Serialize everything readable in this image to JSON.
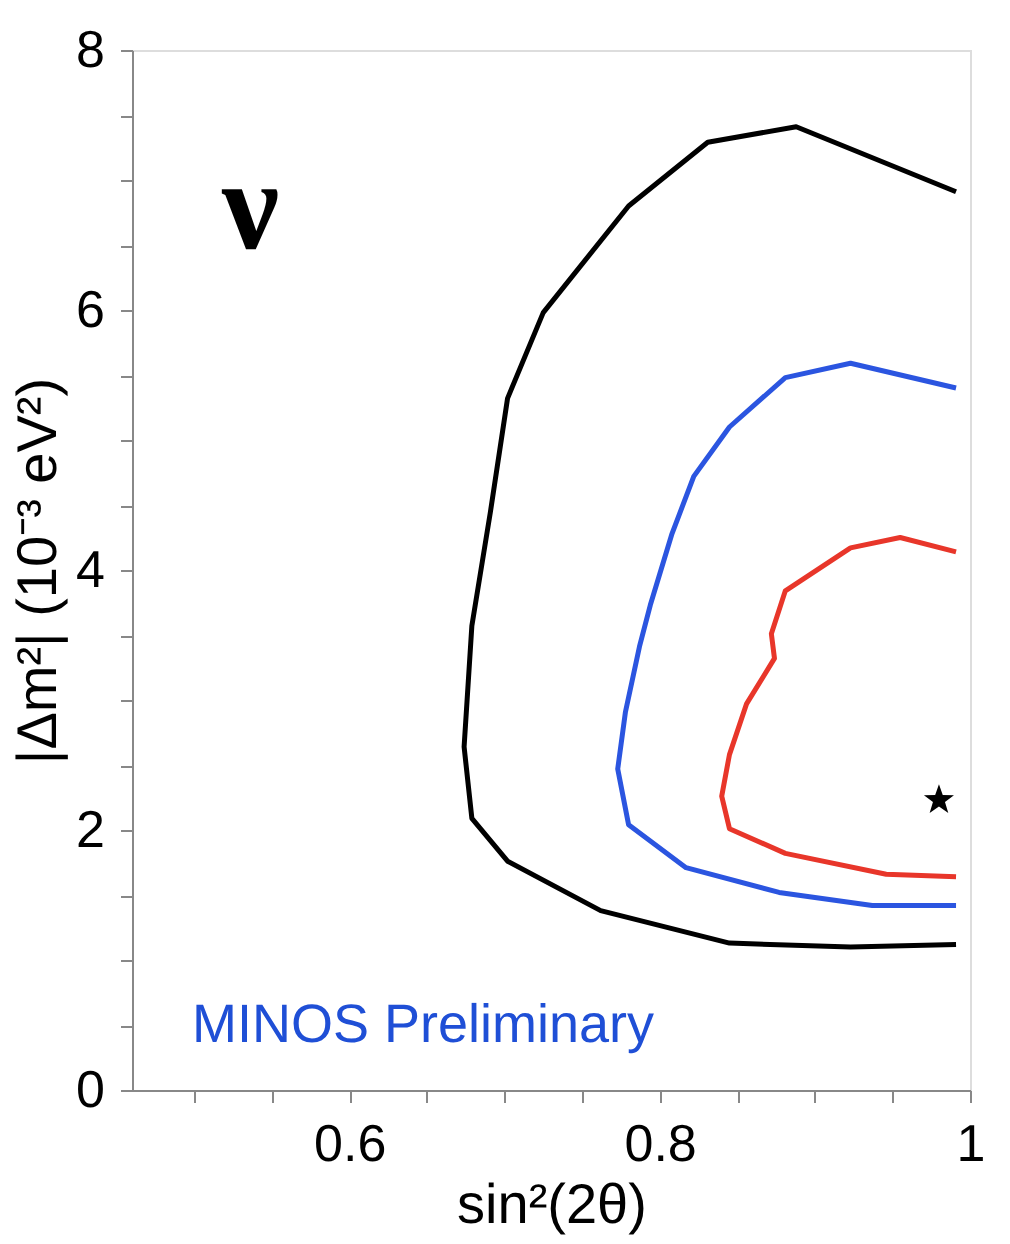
{
  "chart_data": {
    "type": "line",
    "xlabel": "sin²(2θ)",
    "ylabel": "|Δm²| (10⁻³ eV²)",
    "xlim": [
      0.46,
      1.0
    ],
    "ylim": [
      0,
      8
    ],
    "xticks": [
      {
        "value": 0.5,
        "label": null
      },
      {
        "value": 0.55,
        "label": null
      },
      0.6,
      {
        "value": 0.65,
        "label": null
      },
      {
        "value": 0.7,
        "label": null
      },
      {
        "value": 0.75,
        "label": null
      },
      0.8,
      {
        "value": 0.85,
        "label": null
      },
      {
        "value": 0.9,
        "label": null
      },
      {
        "value": 0.95,
        "label": null
      },
      1
    ],
    "yticks": [
      0,
      {
        "value": 0.5,
        "label": null
      },
      {
        "value": 1,
        "label": null
      },
      {
        "value": 1.5,
        "label": null
      },
      2,
      {
        "value": 2.5,
        "label": null
      },
      {
        "value": 3,
        "label": null
      },
      {
        "value": 3.5,
        "label": null
      },
      4,
      {
        "value": 4.5,
        "label": null
      },
      {
        "value": 5,
        "label": null
      },
      {
        "value": 5.5,
        "label": null
      },
      6,
      {
        "value": 6.5,
        "label": null
      },
      {
        "value": 7,
        "label": null
      },
      {
        "value": 7.5,
        "label": null
      },
      8
    ],
    "grid": false,
    "line_style": "solid",
    "series": [
      {
        "color": "#000000",
        "x": [
          0.991,
          0.888,
          0.831,
          0.78,
          0.725,
          0.702,
          0.691,
          0.679,
          0.674,
          0.679,
          0.702,
          0.762,
          0.845,
          0.923,
          0.991
        ],
        "values": [
          6.91,
          7.41,
          7.29,
          6.8,
          5.98,
          5.32,
          4.45,
          3.57,
          2.64,
          2.09,
          1.76,
          1.38,
          1.13,
          1.1,
          1.12
        ]
      },
      {
        "color": "#2b55e0",
        "x": [
          0.991,
          0.923,
          0.881,
          0.845,
          0.822,
          0.808,
          0.794,
          0.787,
          0.778,
          0.773,
          0.78,
          0.817,
          0.877,
          0.937,
          0.991
        ],
        "values": [
          5.4,
          5.59,
          5.48,
          5.1,
          4.72,
          4.28,
          3.73,
          3.41,
          2.91,
          2.47,
          2.04,
          1.71,
          1.52,
          1.42,
          1.42
        ]
      },
      {
        "color": "#e8362a",
        "x": [
          0.991,
          0.955,
          0.923,
          0.881,
          0.872,
          0.874,
          0.856,
          0.845,
          0.84,
          0.845,
          0.881,
          0.946,
          0.991
        ],
        "values": [
          4.14,
          4.25,
          4.17,
          3.84,
          3.51,
          3.32,
          2.97,
          2.58,
          2.26,
          2.01,
          1.82,
          1.66,
          1.64
        ]
      },
      {
        "type": "scatter",
        "marker": "star",
        "color": "#000000",
        "x": [
          0.98
        ],
        "values": [
          2.23
        ]
      }
    ],
    "annotations": [
      "ν",
      "MINOS Preliminary"
    ]
  }
}
